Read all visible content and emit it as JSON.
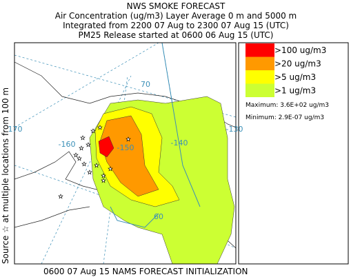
{
  "header": {
    "title": "NWS SMOKE FORECAST",
    "lines": [
      "Air Concentration (ug/m3) Layer Average    0 m and  5000 m",
      "Integrated from 2200 07 Aug to 2300 07 Aug 15 (UTC)",
      "PM25 Release started at 0600 06 Aug 15 (UTC)"
    ]
  },
  "map": {
    "grid_labels": [
      "170",
      "-160",
      "-150",
      "-140",
      "-130",
      "70",
      "60"
    ]
  },
  "legend": {
    "items": [
      {
        "label": ">100 ug/m3",
        "color": "#ff0000"
      },
      {
        "label": ">20 ug/m3",
        "color": "#ff9900"
      },
      {
        "label": ">5 ug/m3",
        "color": "#ffff00"
      },
      {
        "label": ">1 ug/m3",
        "color": "#ccff33"
      }
    ],
    "maximum": "Maximum: 3.6E+02 ug/m3",
    "minimum": "Minimum: 2.9E-07 ug/m3"
  },
  "side_label": "Source ☆ at multiple locations  from  100 m",
  "footer": "0600 07 Aug 15 NAMS FORECAST INITIALIZATION"
}
